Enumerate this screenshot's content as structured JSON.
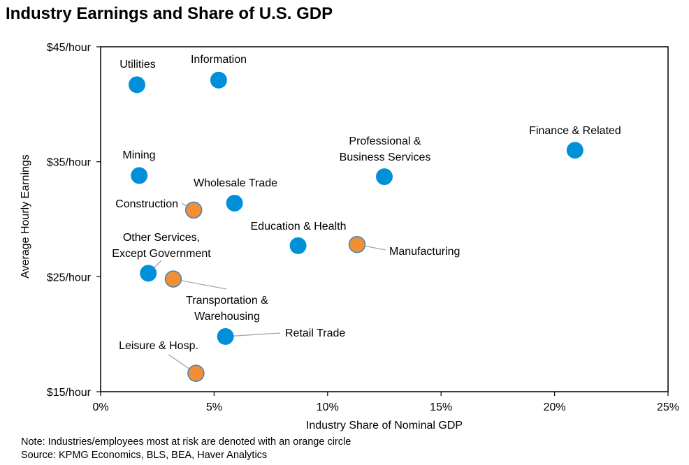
{
  "chart_data": {
    "type": "scatter",
    "title": "Industry Earnings and Share of U.S. GDP",
    "xlabel": "Industry Share of Nominal GDP",
    "ylabel": "Average Hourly Earnings",
    "xlim": [
      0,
      25
    ],
    "ylim": [
      15,
      45
    ],
    "x_ticks": [
      {
        "value": 0,
        "label": "0%"
      },
      {
        "value": 5,
        "label": "5%"
      },
      {
        "value": 10,
        "label": "10%"
      },
      {
        "value": 15,
        "label": "15%"
      },
      {
        "value": 20,
        "label": "20%"
      },
      {
        "value": 25,
        "label": "25%"
      }
    ],
    "y_ticks": [
      {
        "value": 45,
        "label": "$45/hour"
      },
      {
        "value": 35,
        "label": "$35/hour"
      },
      {
        "value": 25,
        "label": "$25/hour"
      },
      {
        "value": 15,
        "label": "$15/hour"
      }
    ],
    "grid": false,
    "colors": {
      "default": "#0090DA",
      "at_risk": "#F28E34",
      "at_risk_outline": "#3A86C8",
      "leader": "#A6A6A6"
    },
    "points": [
      {
        "name": "Utilities",
        "label_lines": [
          "Utilities"
        ],
        "x": 1.6,
        "y": 41.7,
        "at_risk": false
      },
      {
        "name": "Information",
        "label_lines": [
          "Information"
        ],
        "x": 5.2,
        "y": 42.1,
        "at_risk": false
      },
      {
        "name": "Mining",
        "label_lines": [
          "Mining"
        ],
        "x": 1.7,
        "y": 33.8,
        "at_risk": false
      },
      {
        "name": "Finance & Related",
        "label_lines": [
          "Finance & Related"
        ],
        "x": 20.9,
        "y": 36.0,
        "at_risk": false
      },
      {
        "name": "Professional & Business Services",
        "label_lines": [
          "Professional &",
          "Business Services"
        ],
        "x": 12.5,
        "y": 33.7,
        "at_risk": false
      },
      {
        "name": "Wholesale Trade",
        "label_lines": [
          "Wholesale Trade"
        ],
        "x": 5.9,
        "y": 31.4,
        "at_risk": false
      },
      {
        "name": "Construction",
        "label_lines": [
          "Construction"
        ],
        "x": 4.1,
        "y": 30.8,
        "at_risk": true
      },
      {
        "name": "Education & Health",
        "label_lines": [
          "Education & Health"
        ],
        "x": 8.7,
        "y": 27.7,
        "at_risk": false
      },
      {
        "name": "Manufacturing",
        "label_lines": [
          "Manufacturing"
        ],
        "x": 11.3,
        "y": 27.8,
        "at_risk": true
      },
      {
        "name": "Other Services, Except Government",
        "label_lines": [
          "Other Services,",
          "Except Government"
        ],
        "x": 2.1,
        "y": 25.3,
        "at_risk": false
      },
      {
        "name": "Transportation & Warehousing",
        "label_lines": [
          "Transportation &",
          "Warehousing"
        ],
        "x": 3.2,
        "y": 24.8,
        "at_risk": true
      },
      {
        "name": "Retail Trade",
        "label_lines": [
          "Retail Trade"
        ],
        "x": 5.5,
        "y": 19.8,
        "at_risk": false
      },
      {
        "name": "Leisure & Hosp.",
        "label_lines": [
          "Leisure & Hosp."
        ],
        "x": 4.2,
        "y": 16.6,
        "at_risk": true
      }
    ]
  },
  "notes": {
    "note": "Note: Industries/employees most at risk are denoted with an orange circle",
    "source": "Source: KPMG Economics, BLS, BEA, Haver Analytics"
  }
}
